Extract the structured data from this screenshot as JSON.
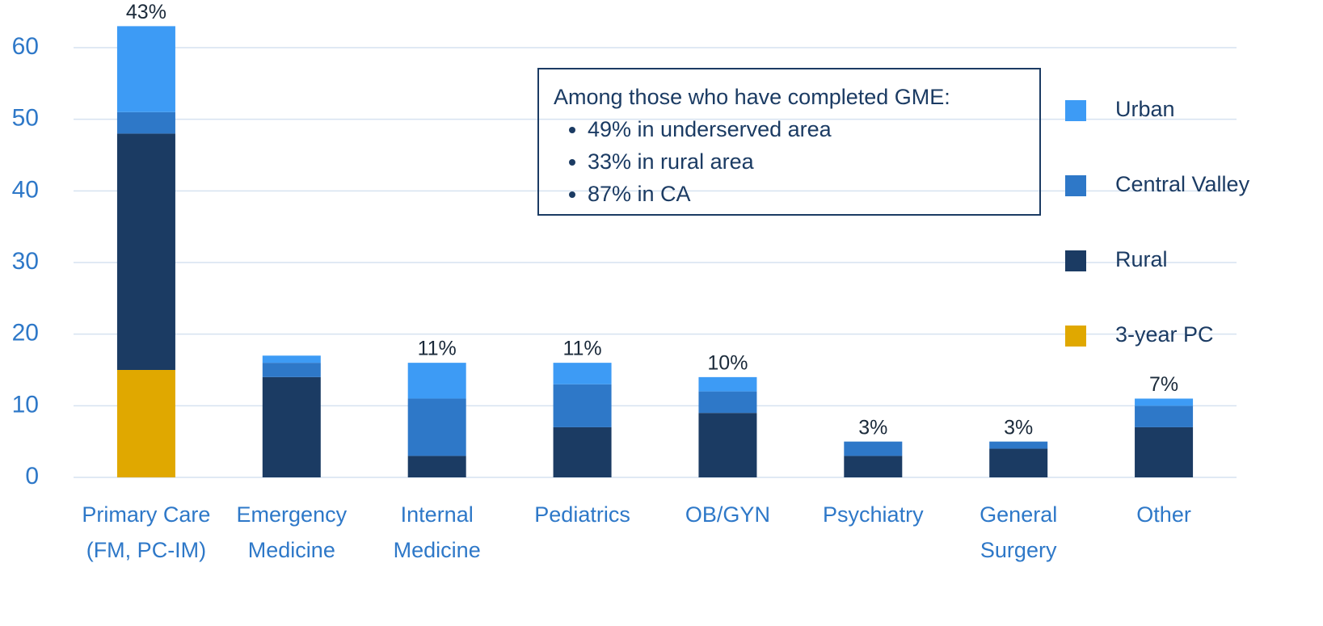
{
  "chart_data": {
    "type": "bar",
    "stacked": true,
    "categories": [
      "Primary Care (FM, PC-IM)",
      "Emergency Medicine",
      "Internal Medicine",
      "Pediatrics",
      "OB/GYN",
      "Psychiatry",
      "General Surgery",
      "Other"
    ],
    "series": [
      {
        "name": "Urban",
        "color": "#3d9bf5",
        "values": [
          12,
          1,
          5,
          3,
          2,
          0,
          0,
          1
        ]
      },
      {
        "name": "Central Valley",
        "color": "#2e78c8",
        "values": [
          3,
          2,
          8,
          6,
          3,
          2,
          1,
          3
        ]
      },
      {
        "name": "Rural",
        "color": "#1b3b63",
        "values": [
          33,
          14,
          3,
          7,
          9,
          3,
          4,
          7
        ]
      },
      {
        "name": "3-year PC",
        "color": "#e0a800",
        "values": [
          15,
          0,
          0,
          0,
          0,
          0,
          0,
          0
        ]
      }
    ],
    "percent_labels": [
      "43%",
      null,
      "11%",
      "11%",
      "10%",
      "3%",
      "3%",
      "7%"
    ],
    "ylim": [
      0,
      63
    ],
    "yticks": [
      0,
      10,
      20,
      30,
      40,
      50,
      60
    ],
    "grid": true,
    "legend": "right",
    "annotation": {
      "title": "Among those who have completed GME:",
      "bullets": [
        "49% in underserved area",
        "33% in rural area",
        "87% in CA"
      ]
    }
  }
}
